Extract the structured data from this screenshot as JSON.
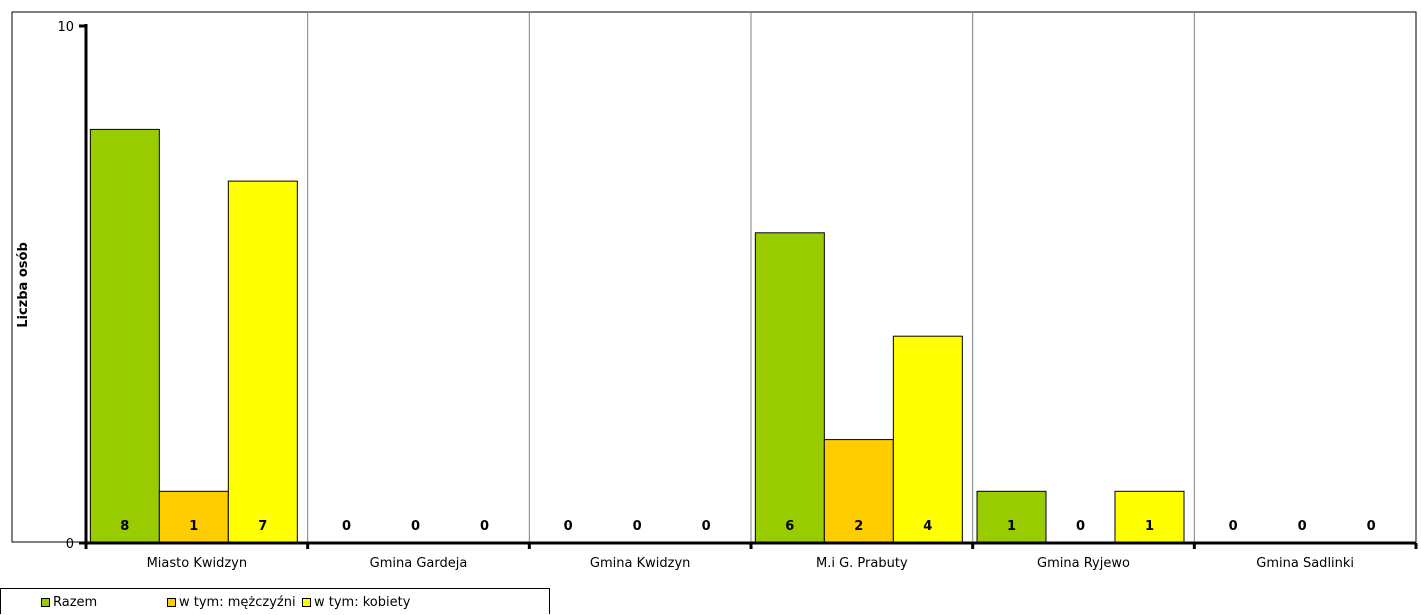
{
  "chart_data": {
    "type": "bar",
    "title": "",
    "xlabel": "",
    "ylabel": "Liczba osób",
    "ylim": [
      0,
      10
    ],
    "yticks": [
      "0",
      "10"
    ],
    "categories": [
      "Miasto Kwidzyn",
      "Gmina Gardeja",
      "Gmina Kwidzyn",
      "M.i G. Prabuty",
      "Gmina Ryjewo",
      "Gmina Sadlinki"
    ],
    "series": [
      {
        "name": "Razem",
        "color": "#99cc00",
        "values": [
          8,
          0,
          0,
          6,
          1,
          0
        ]
      },
      {
        "name": "w tym: mężczyźni",
        "color": "#ffcc00",
        "values": [
          1,
          0,
          0,
          2,
          0,
          0
        ]
      },
      {
        "name": "w tym: kobiety",
        "color": "#ffff00",
        "values": [
          7,
          0,
          0,
          4,
          1,
          0
        ]
      }
    ],
    "grid": "vertical separators between categories",
    "legend_position": "bottom-left"
  }
}
